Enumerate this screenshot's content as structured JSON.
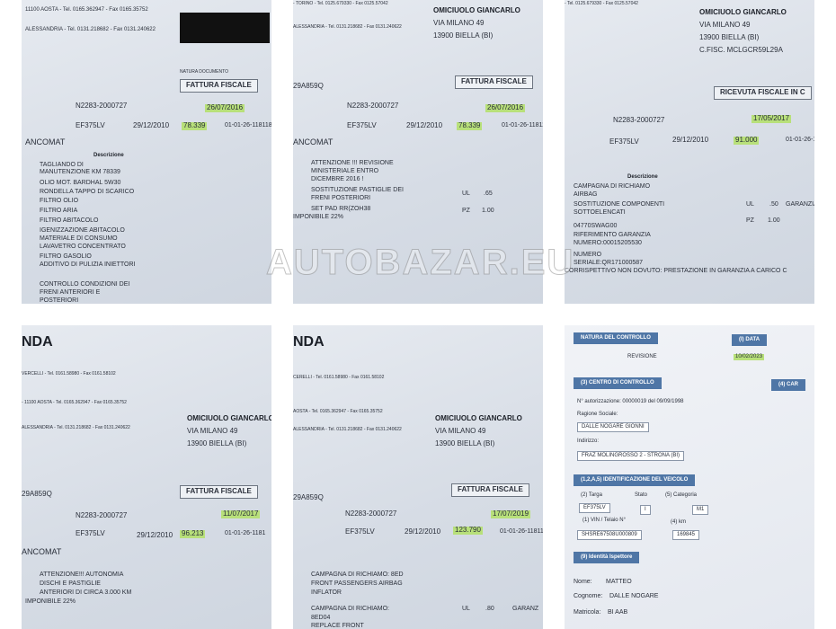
{
  "panels": [
    {
      "texts": [
        "11100 AOSTA - Tel. 0165.362947 - Fax 0165.35752",
        "ALESSANDRIA - Tel. 0131.218682 - Fax 0131.240622",
        "NATURA DOCUMENTO",
        "FATTURA FISCALE",
        "N2283-2000727",
        "26/07/2016",
        "EF375LV",
        "29/12/2010",
        "78.339",
        "01-01-26-118118",
        "ANCOMAT",
        "Descrizione",
        "TAGLIANDO DI",
        "MANUTENZIONE KM 78339",
        "OLIO MOT. BARDHAL 5W30",
        "RONDELLA TAPPO DI SCARICO",
        "FILTRO OLIO",
        "FILTRO ARIA",
        "FILTRO ABITACOLO",
        "IGENIZZAZIONE ABITACOLO",
        "MATERIALE DI CONSUMO",
        "LAVAVETRO CONCENTRATO",
        "FILTRO GASOLIO",
        "ADDITIVO DI PULIZIA INIETTORI",
        "CONTROLLO CONDIZIONI DEI",
        "FRENI ANTERIORI E",
        "POSTERIORI"
      ]
    },
    {
      "texts": [
        "- TORINO - Tel. 0125.679330 - Fax 0125.57042",
        "ALESSANDRIA - Tel. 0131.218682 - Fax 0131.240622",
        "OMICIUOLO GIANCARLO",
        "VIA MILANO 49",
        "13900 BIELLA (BI)",
        "29A859Q",
        "FATTURA FISCALE",
        "N2283-2000727",
        "26/07/2016",
        "EF375LV",
        "29/12/2010",
        "78.339",
        "01-01-26-11811",
        "ANCOMAT",
        "ATTENZIONE !!! REVISIONE",
        "MINISTERIALE ENTRO",
        "DICEMBRE 2016 !",
        "SOSTITUZIONE PASTIGLIE DEI",
        "FRENI POSTERIORI",
        "SET PAD RR(ZOH38",
        "IMPONIBILE 22%",
        "UL",
        ".65",
        "PZ",
        "1.00"
      ]
    },
    {
      "texts": [
        "- Tel. 0125.679330 - Fax 0125.57042",
        "OMICIUOLO GIANCARLO",
        "VIA MILANO 49",
        "13900 BIELLA (BI)",
        "C.FISC. MCLGCR59L29A",
        "RICEVUTA FISCALE IN C",
        "N2283-2000727",
        "17/05/2017",
        "EF375LV",
        "29/12/2010",
        "91.000",
        "01-01-26-1181",
        "Descrizione",
        "CAMPAGNA DI RICHIAMO",
        "AIRBAG",
        "SOSTITUZIONE COMPONENTI",
        "SOTTOELENCATI",
        "04770SWAG00",
        "RIFERIMENTO GARANZIA",
        "NUMERO:00015205530",
        "NUMERO",
        "SERIALE:QR171000587",
        "CORRISPETTIVO NON DOVUTO: PRESTAZIONE IN GARANZIA A CARICO C",
        "UL",
        ".50",
        "GARANZIA",
        "PZ",
        "1.00"
      ]
    },
    {
      "texts": [
        "NDA",
        "VERCELLI - Tel. 0161.58980 - Fax 0161.58102",
        "- 11100 AOSTA - Tel. 0165.362947 - Fax 0165.35752",
        "ALESSANDRIA - Tel. 0131.218682 - Fax 0131.240622",
        "OMICIUOLO GIANCARLO",
        "VIA MILANO 49",
        "13900 BIELLA (BI)",
        "29A859Q",
        "FATTURA FISCALE",
        "N2283-2000727",
        "11/07/2017",
        "EF375LV",
        "29/12/2010",
        "96.213",
        "01-01-26-1181",
        "ANCOMAT",
        "ATTENZIONE!!! AUTONOMIA",
        "DISCHI E PASTIGLIE",
        "ANTERIORI DI CIRCA 3.000 KM",
        "IMPONIBILE 22%"
      ]
    },
    {
      "texts": [
        "NDA",
        "CERELLI - Tel. 0161.58980 - Fax 0161.58102",
        "AOSTA - Tel. 0165.362947 - Fax 0165.35752",
        "ALESSANDRIA - Tel. 0131.218682 - Fax 0131.240622",
        "OMICIUOLO GIANCARLO",
        "VIA MILANO 49",
        "13900 BIELLA (BI)",
        "29A859Q",
        "FATTURA FISCALE",
        "N2283-2000727",
        "17/07/2019",
        "EF375LV",
        "29/12/2010",
        "123.790",
        "01-01-26-11811",
        "CAMPAGNA DI RICHIAMO: 8ED",
        "FRONT PASSENGERS AIRBAG",
        "INFLATOR",
        "CAMPAGNA DI RICHIAMO:",
        "8ED04",
        "REPLACE FRONT",
        "UL",
        ".80",
        "GARANZ"
      ]
    },
    {
      "texts": [
        "NATURA DEL CONTROLLO",
        "REVISIONE",
        "(I) DATA",
        "10/02/2023",
        "(3) CENTRO DI CONTROLLO",
        "(4) CAR",
        "N° autorizzazione: 00000019 del 09/09/1998",
        "Ragione Sociale:",
        "DALLE NOGARE GIONNI",
        "Indirizzo:",
        "FRAZ MOLINGROSSO 2 - STRONA (BI)",
        "(1,2,A,5) IDENTIFICAZIONE DEL VEICOLO",
        "(2) Targa",
        "Stato",
        "(5) Categoria",
        "EF375LV",
        "I",
        "M1",
        "(1) VIN / Telaio N°",
        "(4) km",
        "SHSRE67508U000809",
        "169845",
        "(9) Identità Ispettore",
        "Nome:",
        "MATTEO",
        "Cognome:",
        "DALLE NOGARE",
        "Matricola:",
        "BI AAB"
      ]
    }
  ],
  "watermark": "AUTOBAZAR.EU"
}
